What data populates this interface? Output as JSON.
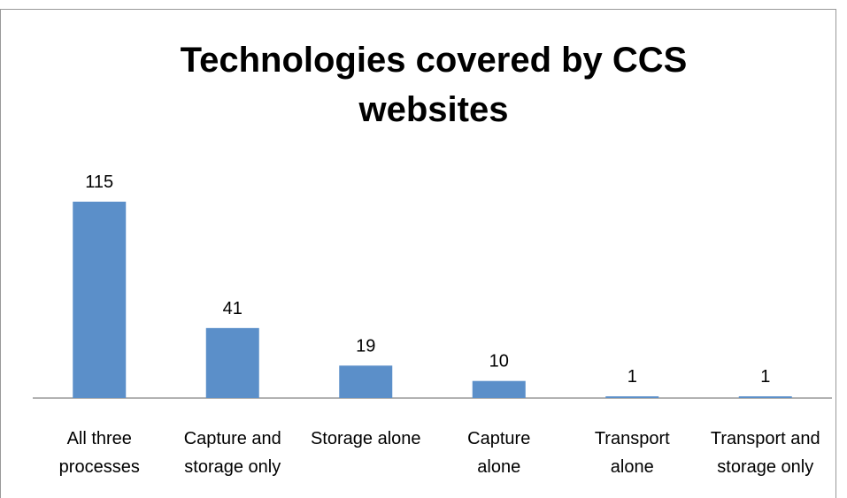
{
  "chart_data": {
    "type": "bar",
    "title": "Technologies covered by CCS websites",
    "categories": [
      "All three processes",
      "Capture and storage only",
      "Storage alone",
      "Capture alone",
      "Transport alone",
      "Transport and storage only"
    ],
    "values": [
      115,
      41,
      19,
      10,
      1,
      1
    ],
    "color": "#5b8fc9"
  }
}
